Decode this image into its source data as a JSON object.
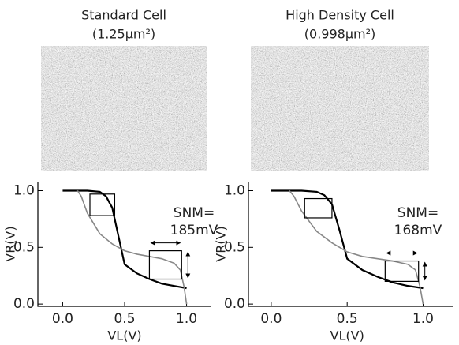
{
  "chart_data": [
    {
      "type": "line",
      "title": "Standard Cell",
      "subtitle": "(1.25μm²)",
      "xlabel": "VL(V)",
      "ylabel": "VR(V)",
      "annotations": [
        "SNM=",
        "185mV"
      ],
      "xlim": [
        -0.2,
        1.2
      ],
      "ylim": [
        -0.02,
        1.08
      ],
      "xticks": [
        {
          "value": 0,
          "label": "0.0"
        },
        0.5,
        {
          "value": 1,
          "label": "1.0"
        }
      ],
      "yticks": [
        {
          "value": 0,
          "label": "0.0"
        },
        0.5,
        {
          "value": 1,
          "label": "1.0"
        }
      ],
      "series": [
        {
          "color": "#000000",
          "x": [
            0.0,
            0.2,
            0.3,
            0.35,
            0.4,
            0.45,
            0.5,
            0.6,
            0.7,
            0.8,
            0.9,
            1.0
          ],
          "values": [
            1.0,
            1.0,
            0.99,
            0.95,
            0.85,
            0.6,
            0.35,
            0.27,
            0.22,
            0.18,
            0.16,
            0.14
          ]
        },
        {
          "color": "#888888",
          "x": [
            0.12,
            0.15,
            0.2,
            0.3,
            0.4,
            0.5,
            0.6,
            0.7,
            0.8,
            0.9,
            0.95,
            0.98,
            1.0
          ],
          "values": [
            1.0,
            0.95,
            0.8,
            0.62,
            0.53,
            0.47,
            0.44,
            0.42,
            0.4,
            0.36,
            0.3,
            0.15,
            0.0
          ]
        }
      ],
      "boxes": [
        {
          "x": [
            0.22,
            0.42
          ],
          "y": [
            0.78,
            0.97
          ]
        },
        {
          "x": [
            0.7,
            0.96
          ],
          "y": [
            0.22,
            0.47
          ]
        }
      ]
    },
    {
      "type": "line",
      "title": "High Density Cell",
      "subtitle": "(0.998μm²)",
      "xlabel": "VL(V)",
      "ylabel": "VR(V)",
      "annotations": [
        "SNM=",
        "168mV"
      ],
      "xlim": [
        -0.15,
        1.2
      ],
      "ylim": [
        -0.02,
        1.08
      ],
      "xticks": [
        {
          "value": 0,
          "label": "0.0"
        },
        0.5,
        {
          "value": 1,
          "label": "1.0"
        }
      ],
      "yticks": [
        {
          "value": 0,
          "label": "0.0"
        },
        0.5,
        {
          "value": 1,
          "label": "1.0"
        }
      ],
      "series": [
        {
          "color": "#000000",
          "x": [
            0.0,
            0.2,
            0.3,
            0.35,
            0.4,
            0.45,
            0.5,
            0.6,
            0.7,
            0.8,
            0.9,
            1.0
          ],
          "values": [
            1.0,
            1.0,
            0.99,
            0.96,
            0.88,
            0.65,
            0.4,
            0.3,
            0.24,
            0.19,
            0.16,
            0.14
          ]
        },
        {
          "color": "#888888",
          "x": [
            0.12,
            0.15,
            0.2,
            0.3,
            0.4,
            0.5,
            0.6,
            0.7,
            0.8,
            0.9,
            0.95,
            0.98,
            1.0
          ],
          "values": [
            1.0,
            0.95,
            0.82,
            0.64,
            0.54,
            0.46,
            0.42,
            0.4,
            0.38,
            0.35,
            0.3,
            0.15,
            0.0
          ]
        }
      ],
      "boxes": [
        {
          "x": [
            0.22,
            0.4
          ],
          "y": [
            0.76,
            0.93
          ]
        },
        {
          "x": [
            0.75,
            0.97
          ],
          "y": [
            0.2,
            0.38
          ]
        }
      ]
    }
  ]
}
